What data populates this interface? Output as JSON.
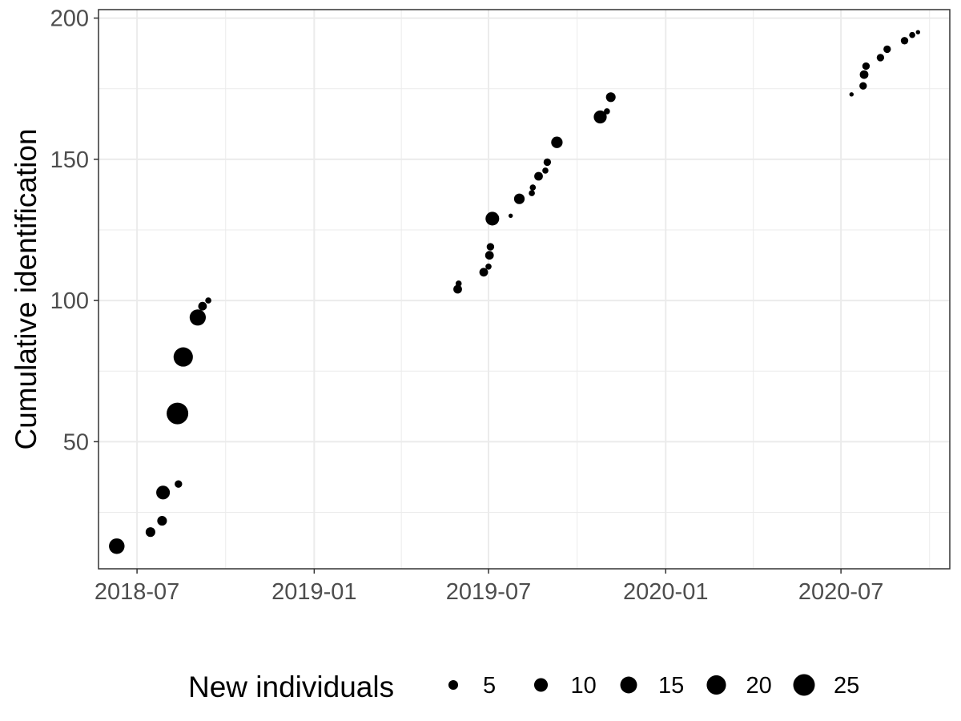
{
  "chart_data": {
    "type": "scatter",
    "title": "",
    "xlabel": "",
    "ylabel": "Cumulative identification",
    "x_type": "date",
    "xlim": [
      "2018-05-22",
      "2020-10-22"
    ],
    "ylim": [
      5,
      203
    ],
    "x_ticks": [
      {
        "value": "2018-07-01",
        "label": "2018-07"
      },
      {
        "value": "2019-01-01",
        "label": "2019-01"
      },
      {
        "value": "2019-07-01",
        "label": "2019-07"
      },
      {
        "value": "2020-01-01",
        "label": "2020-01"
      },
      {
        "value": "2020-07-01",
        "label": "2020-07"
      }
    ],
    "y_ticks": [
      {
        "value": 50,
        "label": "50"
      },
      {
        "value": 100,
        "label": "100"
      },
      {
        "value": 150,
        "label": "150"
      },
      {
        "value": 200,
        "label": "200"
      }
    ],
    "grid": true,
    "colors": {
      "point": "#000000",
      "grid": "#ebebeb",
      "panel_border": "#333333",
      "tick_text": "#4d4d4d"
    },
    "size_variable": "New individuals",
    "points": [
      {
        "x": "2018-06-10",
        "y": 13,
        "size": 13
      },
      {
        "x": "2018-07-15",
        "y": 18,
        "size": 5
      },
      {
        "x": "2018-07-27",
        "y": 22,
        "size": 5
      },
      {
        "x": "2018-07-28",
        "y": 32,
        "size": 10
      },
      {
        "x": "2018-08-13",
        "y": 35,
        "size": 3
      },
      {
        "x": "2018-08-12",
        "y": 60,
        "size": 25
      },
      {
        "x": "2018-08-18",
        "y": 80,
        "size": 20
      },
      {
        "x": "2018-09-02",
        "y": 94,
        "size": 14
      },
      {
        "x": "2018-09-07",
        "y": 98,
        "size": 4
      },
      {
        "x": "2018-09-13",
        "y": 100,
        "size": 2
      },
      {
        "x": "2019-05-30",
        "y": 104,
        "size": 4
      },
      {
        "x": "2019-05-31",
        "y": 106,
        "size": 2
      },
      {
        "x": "2019-06-26",
        "y": 110,
        "size": 4
      },
      {
        "x": "2019-07-01",
        "y": 112,
        "size": 2
      },
      {
        "x": "2019-07-02",
        "y": 116,
        "size": 4
      },
      {
        "x": "2019-07-03",
        "y": 119,
        "size": 3
      },
      {
        "x": "2019-07-05",
        "y": 129,
        "size": 10
      },
      {
        "x": "2019-07-24",
        "y": 130,
        "size": 1
      },
      {
        "x": "2019-08-02",
        "y": 136,
        "size": 6
      },
      {
        "x": "2019-08-15",
        "y": 138,
        "size": 2
      },
      {
        "x": "2019-08-16",
        "y": 140,
        "size": 2
      },
      {
        "x": "2019-08-22",
        "y": 144,
        "size": 4
      },
      {
        "x": "2019-08-29",
        "y": 146,
        "size": 2
      },
      {
        "x": "2019-08-31",
        "y": 149,
        "size": 3
      },
      {
        "x": "2019-09-10",
        "y": 156,
        "size": 7
      },
      {
        "x": "2019-10-25",
        "y": 165,
        "size": 9
      },
      {
        "x": "2019-11-01",
        "y": 167,
        "size": 2
      },
      {
        "x": "2019-11-05",
        "y": 172,
        "size": 5
      },
      {
        "x": "2020-07-12",
        "y": 173,
        "size": 1
      },
      {
        "x": "2020-07-24",
        "y": 176,
        "size": 3
      },
      {
        "x": "2020-07-25",
        "y": 180,
        "size": 4
      },
      {
        "x": "2020-07-27",
        "y": 183,
        "size": 3
      },
      {
        "x": "2020-08-11",
        "y": 186,
        "size": 3
      },
      {
        "x": "2020-08-18",
        "y": 189,
        "size": 3
      },
      {
        "x": "2020-09-05",
        "y": 192,
        "size": 3
      },
      {
        "x": "2020-09-13",
        "y": 194,
        "size": 2
      },
      {
        "x": "2020-09-19",
        "y": 195,
        "size": 1
      }
    ],
    "legend": {
      "title": "New individuals",
      "position": "bottom",
      "items": [
        {
          "value": 5,
          "label": "5"
        },
        {
          "value": 10,
          "label": "10"
        },
        {
          "value": 15,
          "label": "15"
        },
        {
          "value": 20,
          "label": "20"
        },
        {
          "value": 25,
          "label": "25"
        }
      ]
    }
  }
}
